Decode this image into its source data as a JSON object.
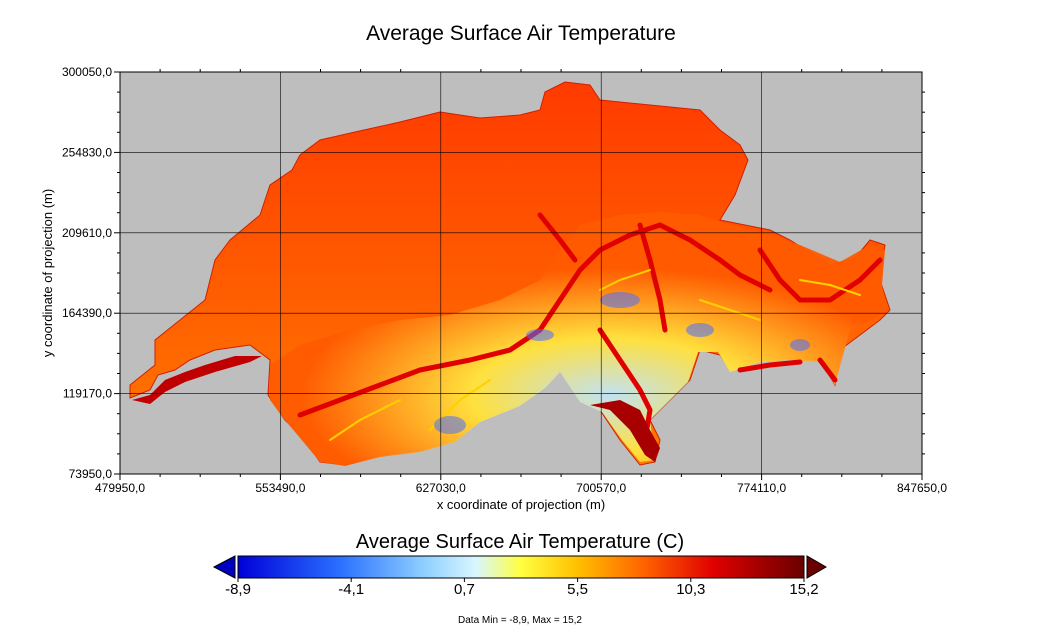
{
  "title": "Average Surface Air Temperature",
  "axes": {
    "xlabel": "x coordinate of projection (m)",
    "ylabel": "y coordinate of projection (m)",
    "xticks": [
      "479950,0",
      "553490,0",
      "627030,0",
      "700570,0",
      "774110,0",
      "847650,0"
    ],
    "yticks": [
      "300050,0",
      "254830,0",
      "209610,0",
      "164390,0",
      "119170,0",
      "73950,0"
    ],
    "xlim": [
      479950,
      847650
    ],
    "ylim": [
      73950,
      300050
    ],
    "grid": true
  },
  "colorbar": {
    "title": "Average Surface Air Temperature (C)",
    "ticks": [
      "-8,9",
      "-4,1",
      "0,7",
      "5,5",
      "10,3",
      "15,2"
    ],
    "min": -8.9,
    "max": 15.2
  },
  "footer": "Data Min = -8,9, Max = 15,2",
  "colors": {
    "background": "#bebebe",
    "cold": "#0000e0",
    "warm": "#ff2000",
    "hot": "#7a0000"
  }
}
